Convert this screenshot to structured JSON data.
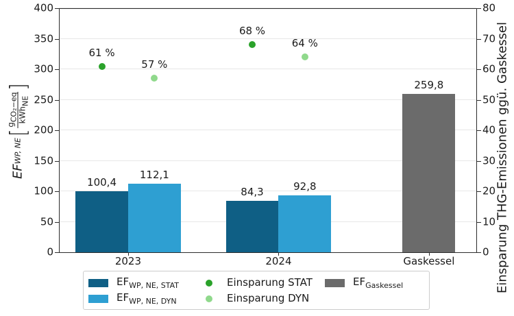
{
  "chart_data": {
    "type": "bar+scatter",
    "categories": [
      "2023",
      "2024",
      "Gaskessel"
    ],
    "left_axis": {
      "label_parts": {
        "base": "EF",
        "base_sub": "WP, NE",
        "bracket_open": "[",
        "frac_num_base": "g",
        "frac_num_sub": "CO₂−eq",
        "frac_den_base": "kWh",
        "frac_den_sub": "NE",
        "bracket_close": "]"
      },
      "range": [
        0,
        400
      ],
      "ticks": [
        0,
        50,
        100,
        150,
        200,
        250,
        300,
        350,
        400
      ]
    },
    "right_axis": {
      "label": "Einsparung THG-Emissionen ggü. Gaskessel",
      "range": [
        0,
        80
      ],
      "ticks": [
        0,
        10,
        20,
        30,
        40,
        50,
        60,
        70,
        80
      ]
    },
    "bar_series": [
      {
        "id": "ef-wp-ne-stat",
        "name": "EF_WP,NE,STAT",
        "color": "#0f5f85",
        "offset": -0.175,
        "bar_width": 0.35,
        "values": [
          100.4,
          84.3,
          null
        ],
        "value_labels": [
          "100,4",
          "84,3",
          null
        ]
      },
      {
        "id": "ef-wp-ne-dyn",
        "name": "EF_WP,NE,DYN",
        "color": "#2e9fd2",
        "offset": 0.175,
        "bar_width": 0.35,
        "values": [
          112.1,
          92.8,
          null
        ],
        "value_labels": [
          "112,1",
          "92,8",
          null
        ]
      },
      {
        "id": "ef-gaskessel",
        "name": "EF_Gaskessel",
        "color": "#6b6b6b",
        "offset": 0,
        "bar_width": 0.35,
        "values": [
          null,
          null,
          259.8
        ],
        "value_labels": [
          null,
          null,
          "259,8"
        ]
      }
    ],
    "scatter_series": [
      {
        "id": "einsparung-stat",
        "name": "Einsparung STAT",
        "color": "#2aa22a",
        "offset": -0.175,
        "values": [
          61,
          68,
          null
        ],
        "value_labels": [
          "61 %",
          "68 %",
          null
        ]
      },
      {
        "id": "einsparung-dyn",
        "name": "Einsparung DYN",
        "color": "#90d98c",
        "offset": 0.175,
        "values": [
          57,
          64,
          null
        ],
        "value_labels": [
          "57 %",
          "64 %",
          null
        ]
      }
    ],
    "layout": {
      "xlim": [
        -0.46,
        2.315
      ],
      "grid": "horizontal",
      "legend_position": "bottom"
    }
  },
  "legend": {
    "items": [
      {
        "id": "ef-wp-ne-stat",
        "swatch": "rect",
        "color": "#0f5f85",
        "base": "EF",
        "sub": "WP, NE, STAT"
      },
      {
        "id": "ef-wp-ne-dyn",
        "swatch": "rect",
        "color": "#2e9fd2",
        "base": "EF",
        "sub": "WP, NE, DYN"
      },
      {
        "id": "einsparung-stat",
        "swatch": "dot",
        "color": "#2aa22a",
        "text": "Einsparung STAT"
      },
      {
        "id": "einsparung-dyn",
        "swatch": "dot",
        "color": "#90d98c",
        "text": "Einsparung DYN"
      },
      {
        "id": "ef-gaskessel",
        "swatch": "rect",
        "color": "#6b6b6b",
        "base": "EF",
        "sub": "Gaskessel"
      }
    ]
  }
}
